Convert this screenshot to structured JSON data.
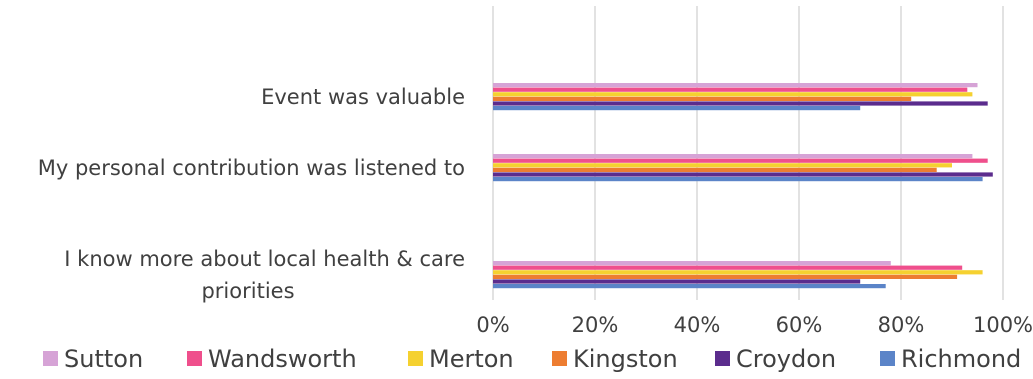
{
  "chart_data": {
    "type": "bar",
    "orientation": "horizontal",
    "categories": [
      "Event was valuable",
      "My personal contribution was listened to",
      "I know more about local health & care priorities"
    ],
    "category_lines": [
      [
        "Event was valuable"
      ],
      [
        "My personal contribution was listened to"
      ],
      [
        "I know more about local health & care",
        "priorities"
      ]
    ],
    "series": [
      {
        "name": "Sutton",
        "color": "#d6a3d6",
        "values": [
          95,
          94,
          78
        ]
      },
      {
        "name": "Wandsworth",
        "color": "#ef4f8c",
        "values": [
          93,
          97,
          92
        ]
      },
      {
        "name": "Merton",
        "color": "#f5d130",
        "values": [
          94,
          90,
          96
        ]
      },
      {
        "name": "Kingston",
        "color": "#ed7d31",
        "values": [
          82,
          87,
          91
        ]
      },
      {
        "name": "Croydon",
        "color": "#5b2c8d",
        "values": [
          97,
          98,
          72
        ]
      },
      {
        "name": "Richmond",
        "color": "#5b84c8",
        "values": [
          72,
          96,
          77
        ]
      }
    ],
    "x_ticks": [
      "0%",
      "20%",
      "40%",
      "60%",
      "80%",
      "100%"
    ],
    "xlim": [
      0,
      100
    ],
    "grid": true,
    "legend_position": "bottom",
    "title": "",
    "xlabel": "",
    "ylabel": ""
  }
}
